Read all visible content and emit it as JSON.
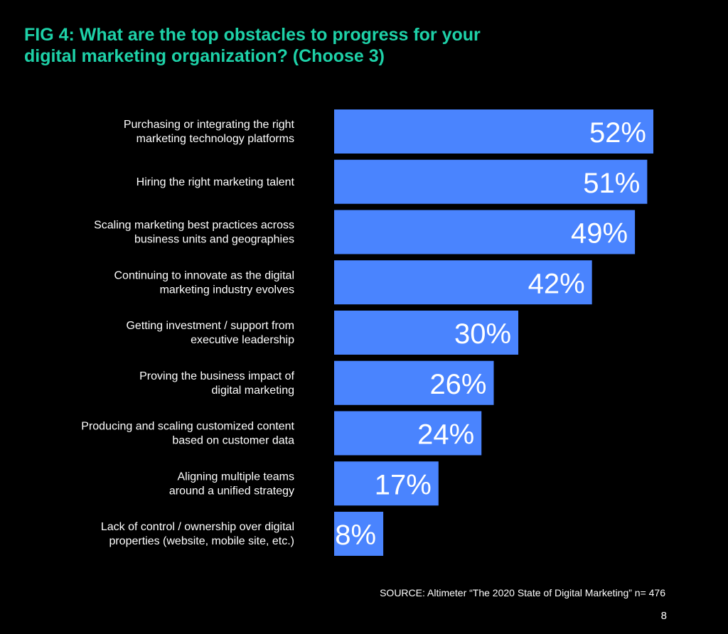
{
  "page": {
    "title": "FIG 4: What are the top obstacles to progress for your\ndigital marketing organization? (Choose 3)",
    "source": "SOURCE: Altimeter “The 2020 State of Digital Marketing” n= 476",
    "page_number": "8"
  },
  "colors": {
    "background": "#000000",
    "title": "#1ed1a8",
    "bar": "#4a84fe",
    "text": "#ffffff"
  },
  "chart_data": {
    "type": "bar",
    "orientation": "horizontal",
    "categories": [
      "Purchasing or integrating the right\nmarketing technology platforms",
      "Hiring the right marketing talent",
      "Scaling marketing best practices across\nbusiness units and geographies",
      "Continuing to innovate as the digital\nmarketing industry evolves",
      "Getting investment / support from\nexecutive leadership",
      "Proving the business impact of\ndigital marketing",
      "Producing and scaling customized content\nbased on customer data",
      "Aligning multiple teams\naround a unified strategy",
      "Lack of control / ownership over digital\nproperties (website, mobile site, etc.)"
    ],
    "values": [
      52,
      51,
      49,
      42,
      30,
      26,
      24,
      17,
      8
    ],
    "data_labels": [
      "52%",
      "51%",
      "49%",
      "42%",
      "30%",
      "26%",
      "24%",
      "17%",
      "8%"
    ],
    "unit": "%",
    "xlim": [
      0,
      52
    ],
    "grid": false,
    "legend": "none"
  }
}
